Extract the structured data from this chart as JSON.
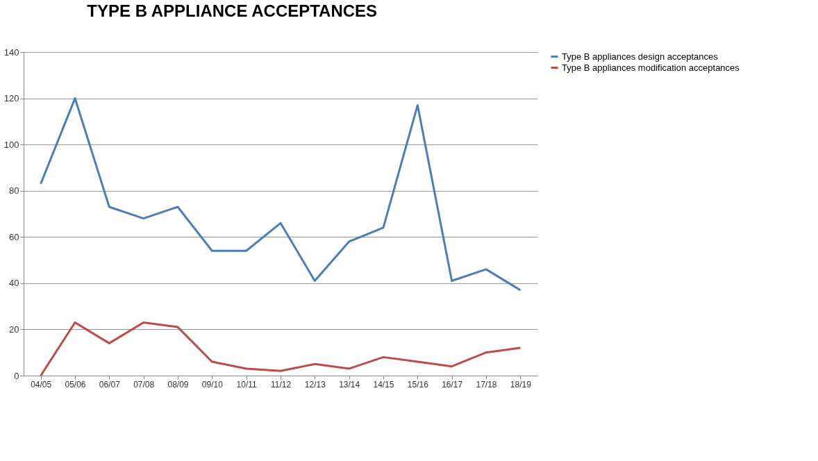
{
  "chart_data": {
    "type": "line",
    "title": "TYPE B APPLIANCE ACCEPTANCES",
    "categories": [
      "04/05",
      "05/06",
      "06/07",
      "07/08",
      "08/09",
      "09/10",
      "10/11",
      "11/12",
      "12/13",
      "13/14",
      "14/15",
      "15/16",
      "16/17",
      "17/18",
      "18/19"
    ],
    "series": [
      {
        "name": "Type B appliances design acceptances",
        "color": "#4a7ebb",
        "values": [
          83,
          120,
          73,
          68,
          73,
          54,
          54,
          66,
          41,
          58,
          64,
          117,
          41,
          46,
          37
        ]
      },
      {
        "name": "Type B appliances modification acceptances",
        "color": "#be4b48",
        "values": [
          0,
          23,
          14,
          23,
          21,
          6,
          3,
          2,
          5,
          3,
          8,
          6,
          4,
          10,
          12
        ]
      }
    ],
    "ylim": [
      0,
      140
    ],
    "yticks": [
      0,
      20,
      40,
      60,
      80,
      100,
      120,
      140
    ],
    "grid": "y",
    "legend": "right",
    "marker": "none",
    "line_style": "solid"
  }
}
